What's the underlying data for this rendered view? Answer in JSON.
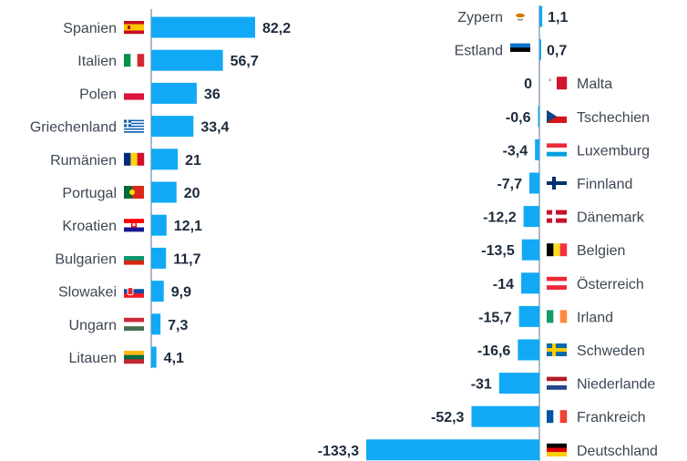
{
  "chart_data": [
    {
      "type": "bar",
      "orientation": "horizontal",
      "panel": "left",
      "title": "",
      "xlabel": "",
      "ylabel": "",
      "color": "#11a9f5",
      "xlim": [
        0,
        82.2
      ],
      "categories": [
        "Spanien",
        "Italien",
        "Polen",
        "Griechenland",
        "Rumänien",
        "Portugal",
        "Kroatien",
        "Bulgarien",
        "Slowakei",
        "Ungarn",
        "Litauen"
      ],
      "values": [
        82.2,
        56.7,
        36,
        33.4,
        21,
        20,
        12.1,
        11.7,
        9.9,
        7.3,
        4.1
      ],
      "value_labels": [
        "82,2",
        "56,7",
        "36",
        "33,4",
        "21",
        "20",
        "12,1",
        "11,7",
        "9,9",
        "7,3",
        "4,1"
      ]
    },
    {
      "type": "bar",
      "orientation": "horizontal",
      "panel": "right",
      "title": "",
      "xlabel": "",
      "ylabel": "",
      "color": "#11a9f5",
      "xlim": [
        -133.3,
        1.1
      ],
      "categories": [
        "Zypern",
        "Estland",
        "Malta",
        "Tschechien",
        "Luxemburg",
        "Finnland",
        "Dänemark",
        "Belgien",
        "Österreich",
        "Irland",
        "Schweden",
        "Niederlande",
        "Frankreich",
        "Deutschland"
      ],
      "values": [
        1.1,
        0.7,
        0,
        -0.6,
        -3.4,
        -7.7,
        -12.2,
        -13.5,
        -14,
        -15.7,
        -16.6,
        -31,
        -52.3,
        -133.3
      ],
      "value_labels": [
        "1,1",
        "0,7",
        "0",
        "-0,6",
        "-3,4",
        "-7,7",
        "-12,2",
        "-13,5",
        "-14",
        "-15,7",
        "-16,6",
        "-31",
        "-52,3",
        "-133,3"
      ]
    }
  ],
  "flags": {
    "Spanien": "flag-spain-icon",
    "Italien": "flag-italy-icon",
    "Polen": "flag-poland-icon",
    "Griechenland": "flag-greece-icon",
    "Rumänien": "flag-romania-icon",
    "Portugal": "flag-portugal-icon",
    "Kroatien": "flag-croatia-icon",
    "Bulgarien": "flag-bulgaria-icon",
    "Slowakei": "flag-slovakia-icon",
    "Ungarn": "flag-hungary-icon",
    "Litauen": "flag-lithuania-icon",
    "Zypern": "flag-cyprus-icon",
    "Estland": "flag-estonia-icon",
    "Malta": "flag-malta-icon",
    "Tschechien": "flag-czechia-icon",
    "Luxemburg": "flag-luxembourg-icon",
    "Finnland": "flag-finland-icon",
    "Dänemark": "flag-denmark-icon",
    "Belgien": "flag-belgium-icon",
    "Österreich": "flag-austria-icon",
    "Irland": "flag-ireland-icon",
    "Schweden": "flag-sweden-icon",
    "Niederlande": "flag-netherlands-icon",
    "Frankreich": "flag-france-icon",
    "Deutschland": "flag-germany-icon"
  }
}
